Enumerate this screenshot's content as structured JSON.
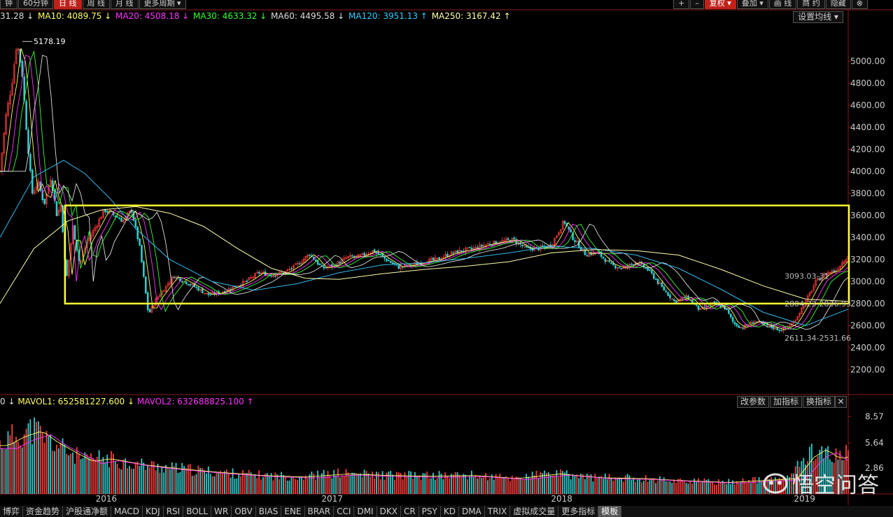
{
  "toolbar_left": [
    "钟",
    "60分钟",
    "日 线",
    "周 线",
    "月 线",
    "更多周期 ▾"
  ],
  "toolbar_left_active": 2,
  "toolbar_right": [
    "+",
    "–",
    "复权 ▾",
    "叠加 ▾",
    "画 线",
    "商 约",
    "隐藏",
    "⊗"
  ],
  "toolbar_right_active": 2,
  "ma_legend": [
    {
      "text": "31.28 ↓",
      "color": "#dddddd"
    },
    {
      "text": "MA10: 4089.75 ↓",
      "color": "#ffff66"
    },
    {
      "text": "MA20: 4508.18 ↓",
      "color": "#ff33ff"
    },
    {
      "text": "MA30: 4633.32 ↓",
      "color": "#33ff33"
    },
    {
      "text": "MA60: 4495.58 ↓",
      "color": "#dddddd"
    },
    {
      "text": "MA120: 3951.13 ↑",
      "color": "#33ccff"
    },
    {
      "text": "MA250: 3167.42 ↑",
      "color": "#ffffaa"
    }
  ],
  "settings_button": "设置均线 ▾",
  "vol_legend": [
    {
      "text": "0 ↓",
      "color": "#dddddd"
    },
    {
      "text": "MAVOL1: 652581227.600 ↓",
      "color": "#ffff66"
    },
    {
      "text": "MAVOL2: 632688825.100 ↑",
      "color": "#ff33ff"
    }
  ],
  "vol_buttons": [
    "改参数",
    "加指标",
    "换指标",
    "✕"
  ],
  "tabs": [
    "博弈",
    "资金趋势",
    "沪股通净额",
    "MACD",
    "KDJ",
    "RSI",
    "BOLL",
    "WR",
    "OBV",
    "BIAS",
    "ENE",
    "BRAR",
    "CCI",
    "DMI",
    "DKX",
    "CR",
    "PSY",
    "KD",
    "DMA",
    "TRIX",
    "虚拟成交量",
    "更多指标",
    "模板"
  ],
  "active_tab": 22,
  "watermark": "悟空问答",
  "chart_data": {
    "type": "candlestick",
    "price_axis": {
      "ticks": [
        2200,
        2400,
        2600,
        2800,
        3000,
        3200,
        3400,
        3600,
        3800,
        4000,
        4200,
        4400,
        4600,
        4800,
        5000
      ],
      "labels": [
        "2200.00",
        "2400.00",
        "2600.00",
        "2800.00",
        "3000.00",
        "3200.00",
        "3400.00",
        "3600.00",
        "3800.00",
        "4000.00",
        "4200.00",
        "4400.00",
        "4600.00",
        "4800.00",
        "5000.00"
      ],
      "range": [
        2000,
        5300
      ]
    },
    "volume_axis": {
      "ticks": [
        2.86,
        5.64,
        8.57
      ],
      "labels": [
        "2.86",
        "5.64",
        "8.57"
      ],
      "range": [
        0,
        9.3
      ]
    },
    "time_labels": [
      "2016",
      "2017",
      "2018",
      "2019"
    ],
    "time_label_positions": [
      0.118,
      0.371,
      0.628,
      0.9
    ],
    "annotations": [
      "5178.19",
      "3093.03-31",
      "2804.23-2836.93",
      "2611.34-2531.66"
    ],
    "highlight_box": {
      "price_range": [
        2800,
        3690
      ],
      "time_range": [
        0.075,
        1.0
      ],
      "color": "#ffff33"
    },
    "close_path": [
      [
        0,
        4000
      ],
      [
        0.007,
        4500
      ],
      [
        0.014,
        4800
      ],
      [
        0.02,
        5178
      ],
      [
        0.026,
        4900
      ],
      [
        0.032,
        4300
      ],
      [
        0.038,
        3800
      ],
      [
        0.045,
        3900
      ],
      [
        0.052,
        3700
      ],
      [
        0.06,
        3950
      ],
      [
        0.067,
        3600
      ],
      [
        0.072,
        3700
      ],
      [
        0.078,
        3000
      ],
      [
        0.086,
        3500
      ],
      [
        0.094,
        3150
      ],
      [
        0.102,
        3350
      ],
      [
        0.113,
        3500
      ],
      [
        0.123,
        3650
      ],
      [
        0.135,
        3600
      ],
      [
        0.145,
        3550
      ],
      [
        0.155,
        3650
      ],
      [
        0.165,
        3300
      ],
      [
        0.175,
        2700
      ],
      [
        0.185,
        2850
      ],
      [
        0.195,
        2950
      ],
      [
        0.205,
        3050
      ],
      [
        0.218,
        3000
      ],
      [
        0.23,
        2950
      ],
      [
        0.245,
        2880
      ],
      [
        0.26,
        2900
      ],
      [
        0.275,
        2950
      ],
      [
        0.29,
        3000
      ],
      [
        0.305,
        3080
      ],
      [
        0.32,
        3060
      ],
      [
        0.335,
        3080
      ],
      [
        0.35,
        3150
      ],
      [
        0.365,
        3250
      ],
      [
        0.38,
        3120
      ],
      [
        0.395,
        3150
      ],
      [
        0.41,
        3220
      ],
      [
        0.425,
        3230
      ],
      [
        0.44,
        3280
      ],
      [
        0.455,
        3200
      ],
      [
        0.47,
        3130
      ],
      [
        0.485,
        3150
      ],
      [
        0.5,
        3180
      ],
      [
        0.515,
        3200
      ],
      [
        0.53,
        3250
      ],
      [
        0.545,
        3280
      ],
      [
        0.56,
        3300
      ],
      [
        0.575,
        3340
      ],
      [
        0.59,
        3360
      ],
      [
        0.605,
        3380
      ],
      [
        0.62,
        3300
      ],
      [
        0.635,
        3300
      ],
      [
        0.65,
        3330
      ],
      [
        0.665,
        3550
      ],
      [
        0.675,
        3400
      ],
      [
        0.69,
        3250
      ],
      [
        0.705,
        3260
      ],
      [
        0.72,
        3150
      ],
      [
        0.735,
        3120
      ],
      [
        0.75,
        3180
      ],
      [
        0.765,
        3100
      ],
      [
        0.78,
        2950
      ],
      [
        0.795,
        2820
      ],
      [
        0.81,
        2860
      ],
      [
        0.825,
        2740
      ],
      [
        0.84,
        2800
      ],
      [
        0.855,
        2760
      ],
      [
        0.865,
        2620
      ],
      [
        0.875,
        2580
      ],
      [
        0.89,
        2640
      ],
      [
        0.905,
        2600
      ],
      [
        0.92,
        2560
      ],
      [
        0.935,
        2620
      ],
      [
        0.95,
        2820
      ],
      [
        0.962,
        3000
      ],
      [
        0.975,
        3080
      ],
      [
        0.985,
        3100
      ],
      [
        1.0,
        3240
      ]
    ],
    "ma_paths": {
      "MA120": [
        [
          0,
          3400
        ],
        [
          0.04,
          3950
        ],
        [
          0.075,
          4100
        ],
        [
          0.1,
          3980
        ],
        [
          0.13,
          3750
        ],
        [
          0.16,
          3480
        ],
        [
          0.2,
          3200
        ],
        [
          0.25,
          3000
        ],
        [
          0.3,
          2920
        ],
        [
          0.35,
          2980
        ],
        [
          0.4,
          3080
        ],
        [
          0.45,
          3150
        ],
        [
          0.5,
          3170
        ],
        [
          0.55,
          3210
        ],
        [
          0.6,
          3260
        ],
        [
          0.65,
          3320
        ],
        [
          0.7,
          3300
        ],
        [
          0.75,
          3240
        ],
        [
          0.8,
          3120
        ],
        [
          0.85,
          2930
        ],
        [
          0.9,
          2720
        ],
        [
          0.95,
          2600
        ],
        [
          1.0,
          2750
        ]
      ],
      "MA250": [
        [
          0,
          2800
        ],
        [
          0.04,
          3300
        ],
        [
          0.08,
          3550
        ],
        [
          0.12,
          3650
        ],
        [
          0.16,
          3680
        ],
        [
          0.2,
          3620
        ],
        [
          0.24,
          3500
        ],
        [
          0.28,
          3300
        ],
        [
          0.32,
          3120
        ],
        [
          0.36,
          3030
        ],
        [
          0.4,
          3020
        ],
        [
          0.45,
          3070
        ],
        [
          0.5,
          3110
        ],
        [
          0.55,
          3140
        ],
        [
          0.6,
          3180
        ],
        [
          0.65,
          3260
        ],
        [
          0.7,
          3290
        ],
        [
          0.75,
          3280
        ],
        [
          0.8,
          3240
        ],
        [
          0.85,
          3110
        ],
        [
          0.9,
          2960
        ],
        [
          0.95,
          2840
        ],
        [
          1.0,
          2820
        ]
      ]
    },
    "volume_envelope": [
      [
        0,
        6.3
      ],
      [
        0.02,
        7.5
      ],
      [
        0.04,
        8.2
      ],
      [
        0.06,
        6.6
      ],
      [
        0.08,
        5.4
      ],
      [
        0.1,
        4.2
      ],
      [
        0.12,
        4.6
      ],
      [
        0.14,
        4.2
      ],
      [
        0.16,
        3.8
      ],
      [
        0.2,
        3.3
      ],
      [
        0.25,
        2.8
      ],
      [
        0.3,
        2.4
      ],
      [
        0.35,
        2.2
      ],
      [
        0.4,
        2.6
      ],
      [
        0.45,
        2.4
      ],
      [
        0.5,
        2.3
      ],
      [
        0.55,
        2.4
      ],
      [
        0.6,
        2.0
      ],
      [
        0.65,
        2.6
      ],
      [
        0.7,
        2.1
      ],
      [
        0.75,
        2.0
      ],
      [
        0.8,
        1.7
      ],
      [
        0.85,
        1.5
      ],
      [
        0.9,
        1.8
      ],
      [
        0.93,
        2.0
      ],
      [
        0.95,
        4.8
      ],
      [
        0.965,
        5.8
      ],
      [
        0.98,
        4.6
      ],
      [
        1.0,
        5.0
      ]
    ]
  }
}
